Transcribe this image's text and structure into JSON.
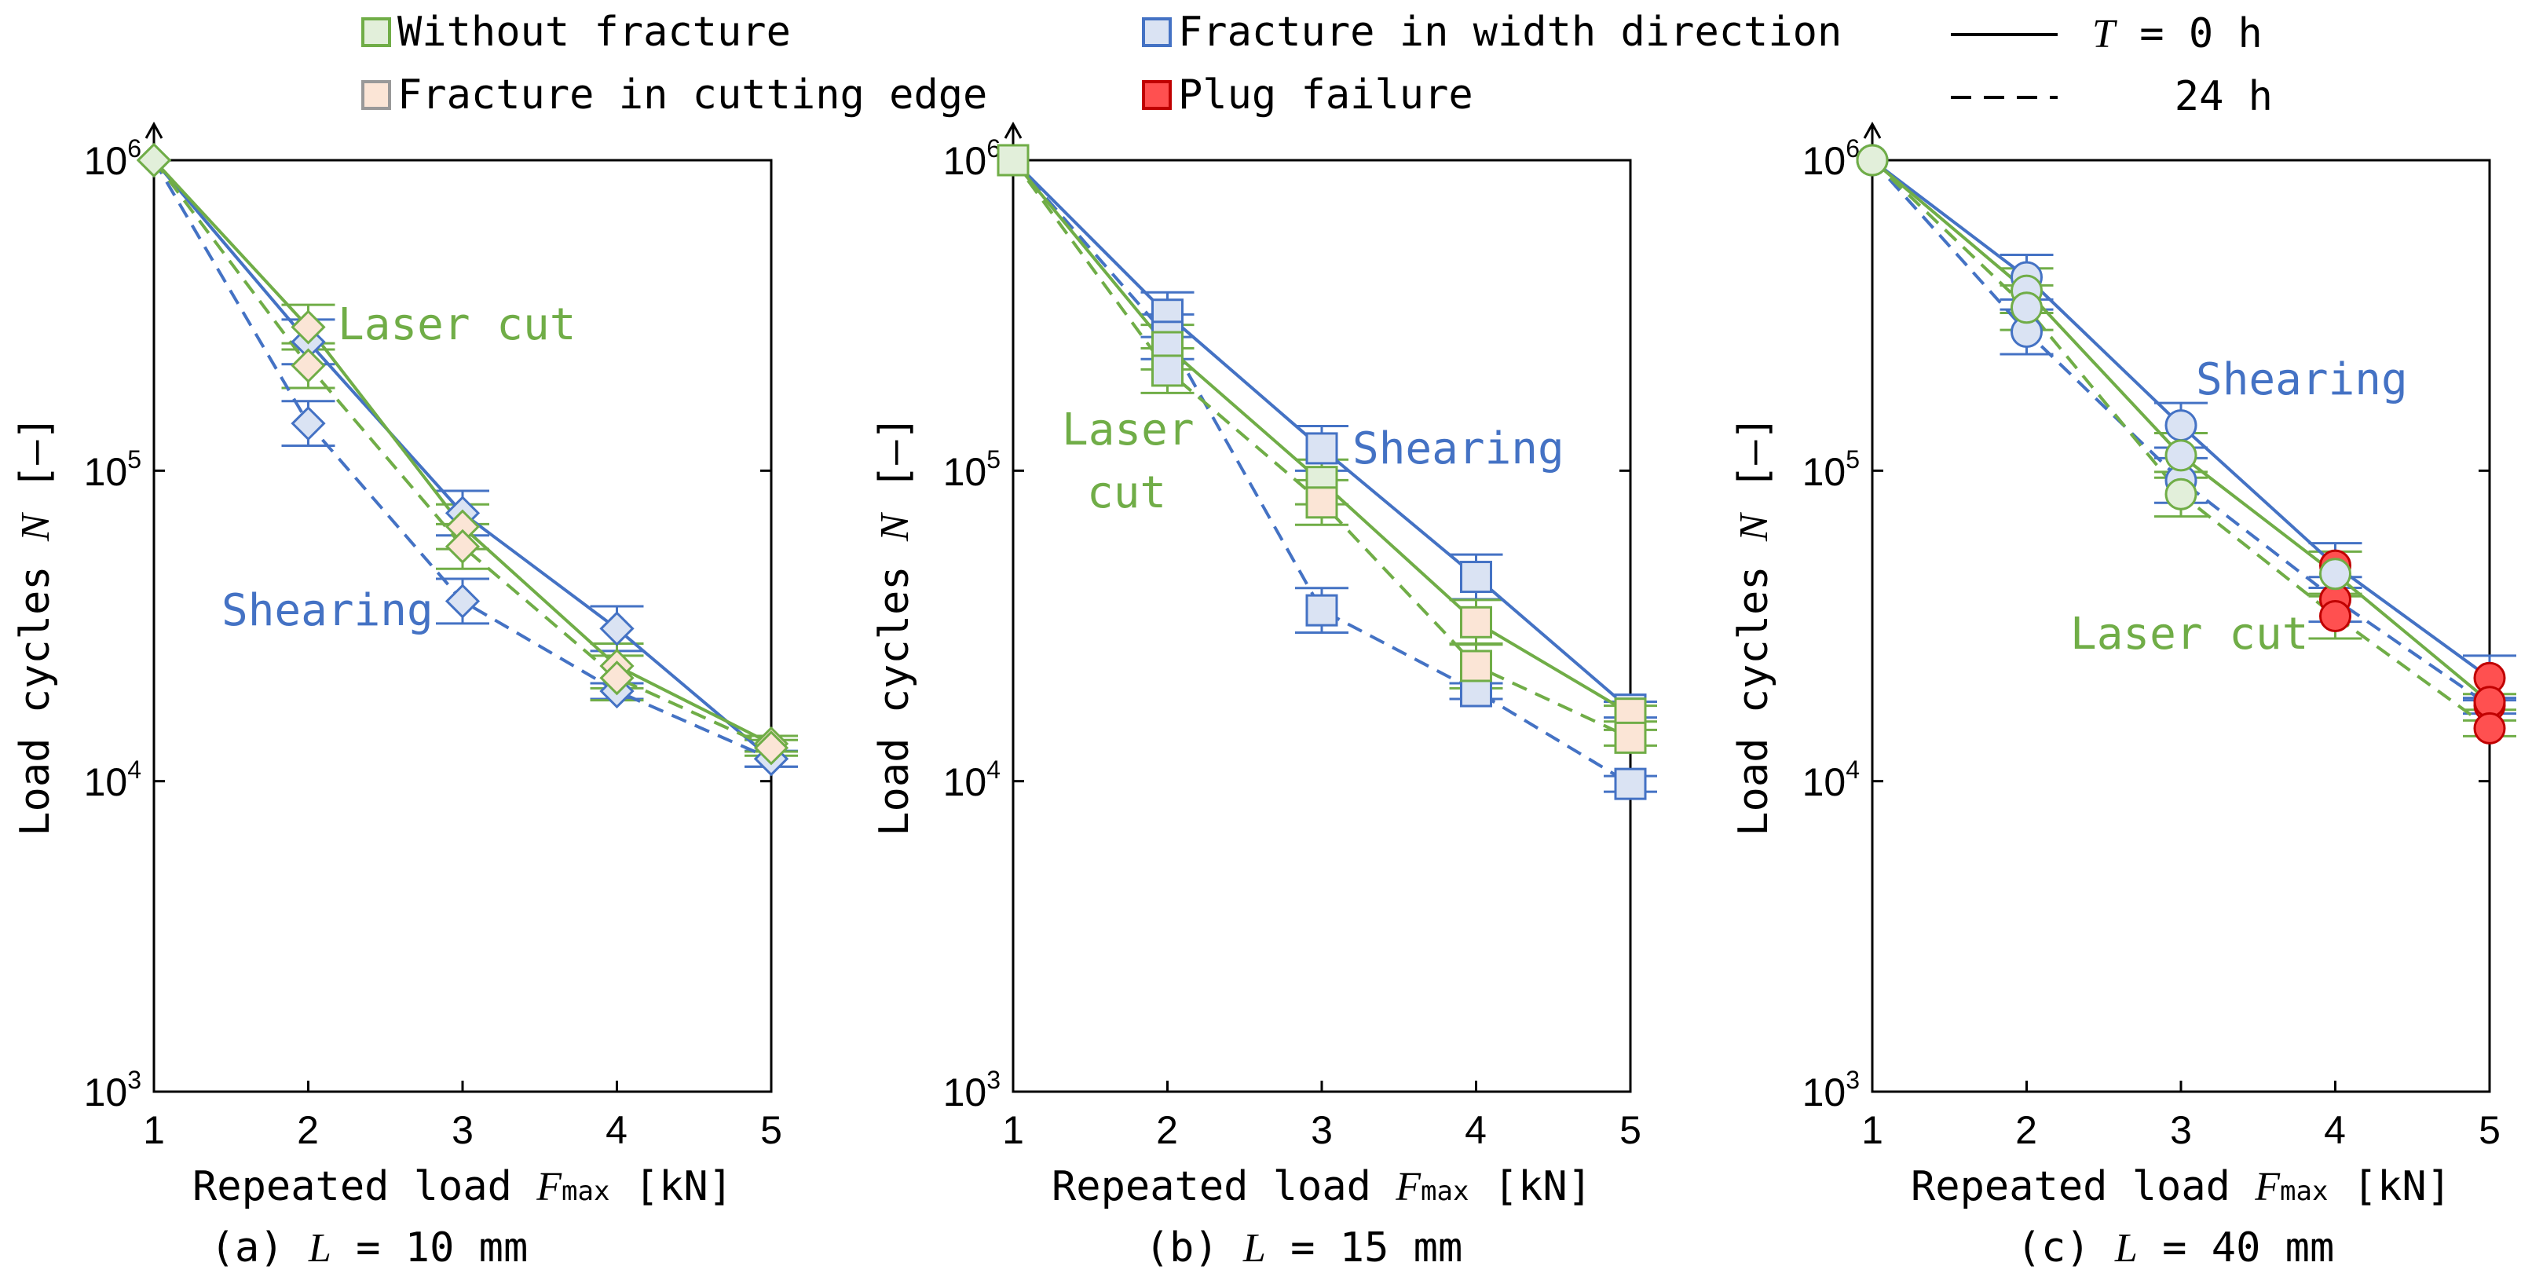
{
  "colors": {
    "laser": "#70AD47",
    "shear": "#4472C4",
    "fill_none": "#E2EFDA",
    "fill_edge": "#FBE5D6",
    "fill_width": "#DAE3F3",
    "fill_plug": "#FF5050",
    "axis": "#000000"
  },
  "legend": {
    "without_fracture": "Without fracture",
    "fracture_edge": "Fracture in cutting edge",
    "fracture_width": "Fracture in width direction",
    "plug_failure": "Plug failure",
    "t_symbol": "T",
    "t0_label": " = 0 h",
    "t24_label": "24 h"
  },
  "chart_data": [
    {
      "type": "line",
      "id": "a",
      "title": "(a) L = 10 mm",
      "title_prefix": "(a)",
      "title_L": "L",
      "title_rest": " = 10 mm",
      "marker": "diamond",
      "x": [
        1,
        2,
        3,
        4,
        5
      ],
      "xlim": [
        1,
        5
      ],
      "ylim": [
        1000,
        1000000
      ],
      "yscale": "log",
      "xlabel_main": "Repeated load ",
      "xlabel_var": "F",
      "xlabel_sub": "max",
      "xlabel_unit": " [kN]",
      "ylabel_main": "Load cycles ",
      "ylabel_var": "N",
      "ylabel_unit": " [–]",
      "yticks": [
        "10",
        "10",
        "10",
        "10"
      ],
      "ytick_exp": [
        "3",
        "4",
        "5",
        "6"
      ],
      "xtick_labels": [
        "1",
        "2",
        "3",
        "4",
        "5"
      ],
      "annotations": [
        "Laser cut",
        "Shearing"
      ],
      "series": [
        {
          "name": "Shearing, T = 0 h",
          "method": "shear",
          "dash": false,
          "values": [
            1000000,
            260000,
            73000,
            31000,
            11800
          ],
          "fills": [
            "none",
            "width",
            "width",
            "width",
            "width"
          ]
        },
        {
          "name": "Shearing, T = 24 h",
          "method": "shear",
          "dash": true,
          "values": [
            1000000,
            142000,
            38000,
            19500,
            11800
          ],
          "fills": [
            "none",
            "width",
            "width",
            "width",
            "width"
          ]
        },
        {
          "name": "Laser cut, T = 0 h",
          "method": "laser",
          "dash": false,
          "values": [
            1000000,
            290000,
            66000,
            23500,
            13200
          ],
          "fills": [
            "none",
            "edge",
            "edge",
            "edge",
            "edge"
          ]
        },
        {
          "name": "Laser cut, T = 24 h",
          "method": "laser",
          "dash": true,
          "values": [
            1000000,
            218000,
            57000,
            21500,
            12800
          ],
          "fills": [
            "none",
            "edge",
            "edge",
            "edge",
            "edge"
          ]
        }
      ]
    },
    {
      "type": "line",
      "id": "b",
      "title": "(b) L = 15 mm",
      "title_prefix": "(b)",
      "title_L": "L",
      "title_rest": " = 15 mm",
      "marker": "square",
      "x": [
        1,
        2,
        3,
        4,
        5
      ],
      "xlim": [
        1,
        5
      ],
      "ylim": [
        1000,
        1000000
      ],
      "yscale": "log",
      "xlabel_main": "Repeated load ",
      "xlabel_var": "F",
      "xlabel_sub": "max",
      "xlabel_unit": " [kN]",
      "ylabel_main": "Load cycles ",
      "ylabel_var": "N",
      "ylabel_unit": " [–]",
      "yticks": [
        "10",
        "10",
        "10",
        "10"
      ],
      "ytick_exp": [
        "3",
        "4",
        "5",
        "6"
      ],
      "xtick_labels": [
        "1",
        "2",
        "3",
        "4",
        "5"
      ],
      "annotations": [
        "Laser",
        "cut",
        "Shearing"
      ],
      "series": [
        {
          "name": "Shearing, T = 0 h",
          "method": "shear",
          "dash": false,
          "values": [
            1000000,
            318000,
            118000,
            45500,
            17000
          ],
          "fills": [
            "none",
            "width",
            "width",
            "width",
            "width"
          ]
        },
        {
          "name": "Shearing, T = 24 h",
          "method": "shear",
          "dash": true,
          "values": [
            1000000,
            270000,
            35500,
            19500,
            9800
          ],
          "fills": [
            "none",
            "width",
            "width",
            "width",
            "width"
          ]
        },
        {
          "name": "Laser cut, T = 0 h",
          "method": "laser",
          "dash": false,
          "values": [
            1000000,
            250000,
            92000,
            32500,
            16500
          ],
          "fills": [
            "none",
            "width",
            "none",
            "edge",
            "edge"
          ]
        },
        {
          "name": "Laser cut, T = 24 h",
          "method": "laser",
          "dash": true,
          "values": [
            1000000,
            210000,
            79000,
            23500,
            13800
          ],
          "fills": [
            "none",
            "width",
            "edge",
            "edge",
            "edge"
          ]
        }
      ]
    },
    {
      "type": "line",
      "id": "c",
      "title": "(c) L = 40 mm",
      "title_prefix": "(c)",
      "title_L": "L",
      "title_rest": " = 40 mm",
      "marker": "circle",
      "x": [
        1,
        2,
        3,
        4,
        5
      ],
      "xlim": [
        1,
        5
      ],
      "ylim": [
        1000,
        1000000
      ],
      "yscale": "log",
      "xlabel_main": "Repeated load ",
      "xlabel_var": "F",
      "xlabel_sub": "max",
      "xlabel_unit": " [kN]",
      "ylabel_main": "Load cycles ",
      "ylabel_var": "N",
      "ylabel_unit": " [–]",
      "yticks": [
        "10",
        "10",
        "10",
        "10"
      ],
      "ytick_exp": [
        "3",
        "4",
        "5",
        "6"
      ],
      "xtick_labels": [
        "1",
        "2",
        "3",
        "4",
        "5"
      ],
      "annotations": [
        "Shearing",
        "Laser cut"
      ],
      "series": [
        {
          "name": "Shearing, T = 0 h",
          "method": "shear",
          "dash": false,
          "values": [
            1000000,
            420000,
            140000,
            49500,
            21500
          ],
          "fills": [
            "none",
            "width",
            "width",
            "plug",
            "plug"
          ]
        },
        {
          "name": "Shearing, T = 24 h",
          "method": "shear",
          "dash": true,
          "values": [
            1000000,
            280000,
            93000,
            38500,
            17500
          ],
          "fills": [
            "none",
            "width",
            "width",
            "plug",
            "plug"
          ]
        },
        {
          "name": "Laser cut, T = 0 h",
          "method": "laser",
          "dash": false,
          "values": [
            1000000,
            380000,
            112000,
            46500,
            18000
          ],
          "fills": [
            "none",
            "width",
            "width",
            "width",
            "plug"
          ]
        },
        {
          "name": "Laser cut, T = 24 h",
          "method": "laser",
          "dash": true,
          "values": [
            1000000,
            335000,
            84000,
            34000,
            14800
          ],
          "fills": [
            "none",
            "width",
            "none",
            "plug",
            "plug"
          ]
        }
      ]
    }
  ]
}
